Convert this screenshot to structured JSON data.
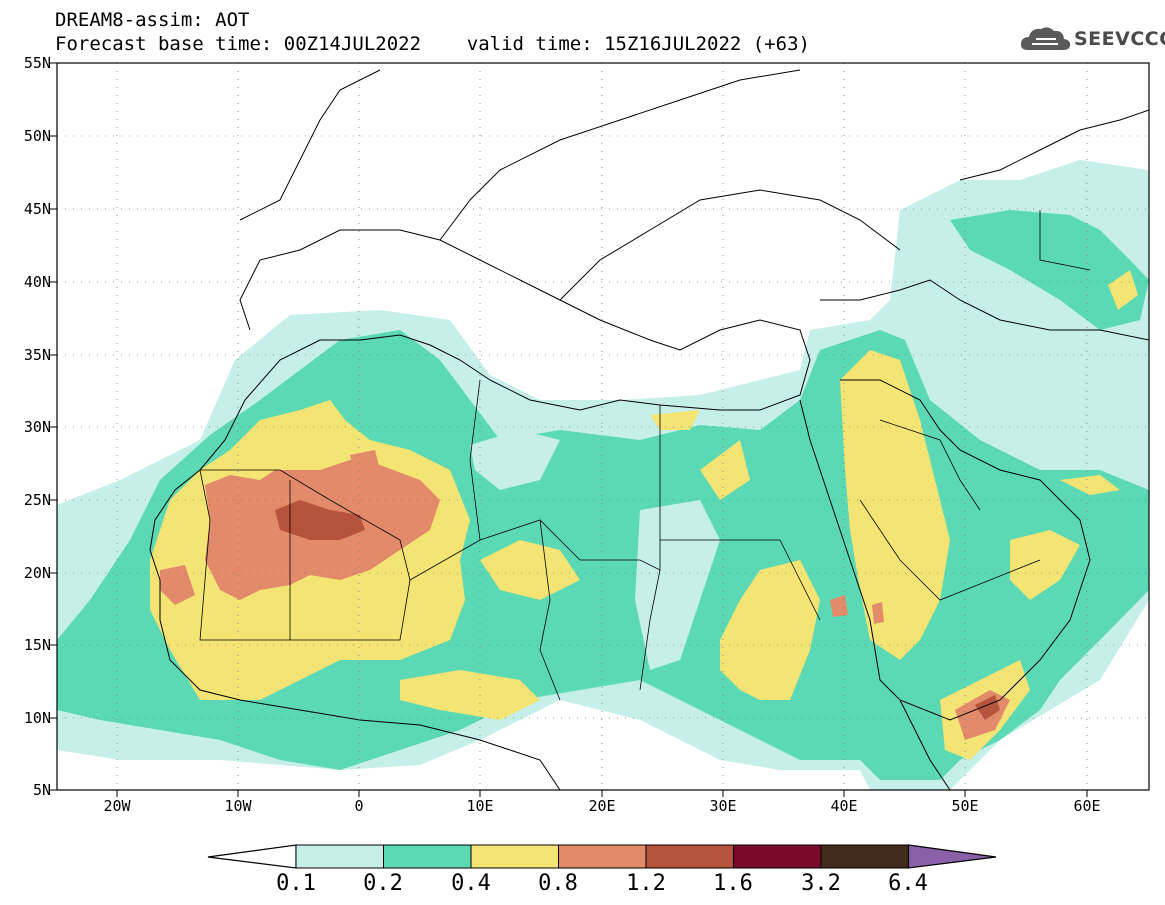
{
  "header": {
    "title": "DREAM8-assim: AOT",
    "subtitle": "Forecast base time: 00Z14JUL2022    valid time: 15Z16JUL2022 (+63)"
  },
  "logo": {
    "text": "SEEVCCC",
    "icon": "cloud-icon"
  },
  "map": {
    "lat_labels": [
      "55N",
      "50N",
      "45N",
      "40N",
      "35N",
      "30N",
      "25N",
      "20N",
      "15N",
      "10N",
      "5N"
    ],
    "lon_labels": [
      "20W",
      "10W",
      "0",
      "10E",
      "20E",
      "30E",
      "40E",
      "50E",
      "60E"
    ],
    "lon_range": [
      -25,
      65
    ],
    "lat_range": [
      5,
      55
    ],
    "gridlines": true
  },
  "colorbar": {
    "labels": [
      "0.1",
      "0.2",
      "0.4",
      "0.8",
      "1.2",
      "1.6",
      "3.2",
      "6.4"
    ],
    "colors": [
      "#ffffff",
      "#c6efe9",
      "#5ad9b4",
      "#f4e474",
      "#e38a6a",
      "#b5533d",
      "#7a0a2a",
      "#432b1b",
      "#8a60a8"
    ]
  },
  "colors": {
    "level_01": "#c6efe9",
    "level_02": "#5ad9b4",
    "level_04": "#f4e474",
    "level_08": "#e38a6a",
    "level_12": "#b5533d"
  }
}
